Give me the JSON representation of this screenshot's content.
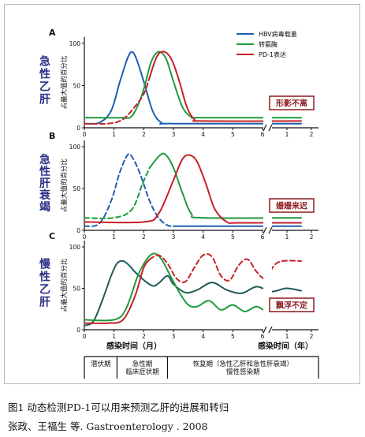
{
  "figure": {
    "caption": "图1 动态检测PD-1可以用来预测乙肝的进展和转归",
    "citation": "张政、王福生 等. Gastroenterology . 2008",
    "legend": [
      {
        "label": "HBV病毒载量",
        "color": "#1f5fb0"
      },
      {
        "label": "转氨酶",
        "color": "#1f9a3c"
      },
      {
        "label": "PD-1表达",
        "color": "#c62027"
      }
    ],
    "axis": {
      "ylabel": "占最大值的百分比",
      "yticks": [
        "0",
        "50",
        "100"
      ],
      "month_ticks": [
        "0",
        "1",
        "2",
        "3",
        "4",
        "5",
        "6"
      ],
      "year_ticks": [
        "1",
        "2"
      ],
      "xlabel_months": "感染时间（月）",
      "xlabel_years": "感染时间（年）"
    },
    "phases": [
      {
        "label": "潜伏期"
      },
      {
        "label": "急性期\n临床症状期"
      },
      {
        "label": "恢复期（急性乙肝和急性肝衰竭）\n慢性感染期"
      }
    ]
  },
  "chart_data": [
    {
      "type": "line",
      "panel_letter": "A",
      "side_label": "急性乙肝",
      "badge": "形影不离",
      "x_unit": "months",
      "ylim": [
        0,
        100
      ],
      "series": [
        {
          "name": "HBV病毒载量",
          "color": "#1f5fb0",
          "solid": [
            [
              0,
              5
            ],
            [
              0.5,
              6
            ],
            [
              0.9,
              20
            ],
            [
              1.2,
              55
            ],
            [
              1.45,
              82
            ],
            [
              1.6,
              90
            ],
            [
              1.75,
              82
            ],
            [
              2.0,
              55
            ],
            [
              2.3,
              20
            ],
            [
              2.6,
              6
            ],
            [
              3.0,
              5
            ],
            [
              7.3,
              5
            ]
          ],
          "dashed": []
        },
        {
          "name": "转氨酶",
          "color": "#1f9a3c",
          "solid": [
            [
              0,
              12
            ],
            [
              1.2,
              12
            ],
            [
              1.6,
              14
            ],
            [
              1.95,
              40
            ],
            [
              2.25,
              78
            ],
            [
              2.5,
              90
            ],
            [
              2.75,
              82
            ],
            [
              3.0,
              55
            ],
            [
              3.3,
              25
            ],
            [
              3.6,
              13
            ],
            [
              4.0,
              12
            ],
            [
              7.3,
              12
            ]
          ],
          "dashed": []
        },
        {
          "name": "PD-1表达",
          "color": "#c62027",
          "dashed": [
            [
              0,
              5
            ],
            [
              0.8,
              5
            ],
            [
              1.3,
              10
            ],
            [
              1.7,
              25
            ],
            [
              2.0,
              40
            ],
            [
              2.2,
              60
            ]
          ],
          "solid": [
            [
              2.2,
              60
            ],
            [
              2.45,
              85
            ],
            [
              2.7,
              90
            ],
            [
              2.95,
              80
            ],
            [
              3.2,
              55
            ],
            [
              3.45,
              25
            ],
            [
              3.7,
              10
            ],
            [
              4.0,
              8
            ],
            [
              7.3,
              8
            ]
          ]
        }
      ]
    },
    {
      "type": "line",
      "panel_letter": "B",
      "side_label": "急性肝衰竭",
      "badge": "姗姗来迟",
      "x_unit": "months",
      "ylim": [
        0,
        100
      ],
      "series": [
        {
          "name": "HBV病毒载量",
          "color": "#1f5fb0",
          "dashed": [
            [
              0,
              5
            ],
            [
              0.5,
              8
            ],
            [
              0.9,
              35
            ],
            [
              1.2,
              70
            ],
            [
              1.45,
              90
            ],
            [
              1.6,
              88
            ],
            [
              1.85,
              70
            ],
            [
              2.2,
              35
            ],
            [
              2.5,
              15
            ],
            [
              2.8,
              6
            ],
            [
              3.0,
              5
            ]
          ],
          "solid": [
            [
              3.0,
              5
            ],
            [
              7.3,
              5
            ]
          ]
        },
        {
          "name": "转氨酶",
          "color": "#1f9a3c",
          "dashed": [
            [
              0,
              15
            ],
            [
              1.0,
              15
            ],
            [
              1.6,
              25
            ],
            [
              1.95,
              55
            ],
            [
              2.2,
              75
            ]
          ],
          "solid": [
            [
              2.2,
              75
            ],
            [
              2.55,
              90
            ],
            [
              2.75,
              90
            ],
            [
              3.0,
              75
            ],
            [
              3.3,
              45
            ],
            [
              3.6,
              20
            ],
            [
              4.0,
              15
            ],
            [
              7.3,
              15
            ]
          ]
        },
        {
          "name": "PD-1表达",
          "color": "#c62027",
          "solid": [
            [
              0,
              10
            ],
            [
              2.0,
              10
            ],
            [
              2.5,
              20
            ],
            [
              3.0,
              60
            ],
            [
              3.3,
              85
            ],
            [
              3.55,
              90
            ],
            [
              3.8,
              82
            ],
            [
              4.1,
              55
            ],
            [
              4.4,
              25
            ],
            [
              4.8,
              10
            ],
            [
              5.2,
              9
            ],
            [
              7.3,
              9
            ]
          ],
          "dashed": []
        }
      ]
    },
    {
      "type": "line",
      "panel_letter": "C",
      "side_label": "慢性乙肝",
      "badge": "飘浮不定",
      "x_unit": "months",
      "ylim": [
        0,
        100
      ],
      "series": [
        {
          "name": "HBV病毒载量",
          "color": "#1f5b5a",
          "solid": [
            [
              0,
              5
            ],
            [
              0.3,
              10
            ],
            [
              0.6,
              35
            ],
            [
              0.9,
              65
            ],
            [
              1.1,
              80
            ],
            [
              1.3,
              83
            ],
            [
              1.5,
              78
            ],
            [
              1.7,
              70
            ],
            [
              2.0,
              60
            ],
            [
              2.3,
              53
            ],
            [
              2.5,
              56
            ],
            [
              2.8,
              65
            ],
            [
              3.0,
              55
            ],
            [
              3.4,
              45
            ],
            [
              3.8,
              48
            ],
            [
              4.3,
              57
            ],
            [
              4.8,
              48
            ],
            [
              5.3,
              44
            ],
            [
              5.8,
              52
            ],
            [
              6.3,
              46
            ],
            [
              6.8,
              50
            ],
            [
              7.3,
              47
            ]
          ],
          "dashed": []
        },
        {
          "name": "转氨酶",
          "color": "#1f9a3c",
          "solid": [
            [
              0,
              12
            ],
            [
              1.0,
              12
            ],
            [
              1.4,
              25
            ],
            [
              1.8,
              65
            ],
            [
              2.1,
              85
            ],
            [
              2.35,
              92
            ],
            [
              2.6,
              85
            ],
            [
              2.9,
              65
            ],
            [
              3.2,
              45
            ],
            [
              3.5,
              30
            ],
            [
              3.8,
              28
            ],
            [
              4.2,
              35
            ],
            [
              4.6,
              24
            ],
            [
              5.0,
              30
            ],
            [
              5.4,
              22
            ],
            [
              5.8,
              28
            ],
            [
              6.2,
              21
            ],
            [
              6.6,
              26
            ],
            [
              7.0,
              22
            ],
            [
              7.3,
              24
            ]
          ],
          "dashed": []
        },
        {
          "name": "PD-1表达",
          "color": "#c62027",
          "solid": [
            [
              0,
              8
            ],
            [
              0.8,
              8
            ],
            [
              1.3,
              12
            ],
            [
              1.7,
              40
            ],
            [
              2.0,
              75
            ],
            [
              2.2,
              85
            ]
          ],
          "dashed": [
            [
              2.2,
              85
            ],
            [
              2.5,
              90
            ],
            [
              2.8,
              80
            ],
            [
              3.1,
              62
            ],
            [
              3.4,
              58
            ],
            [
              3.7,
              75
            ],
            [
              4.0,
              90
            ],
            [
              4.3,
              88
            ],
            [
              4.6,
              65
            ],
            [
              4.9,
              60
            ],
            [
              5.2,
              78
            ],
            [
              5.5,
              85
            ],
            [
              5.8,
              70
            ],
            [
              6.1,
              62
            ],
            [
              6.4,
              78
            ],
            [
              6.7,
              83
            ],
            [
              7.3,
              83
            ]
          ]
        }
      ]
    }
  ]
}
